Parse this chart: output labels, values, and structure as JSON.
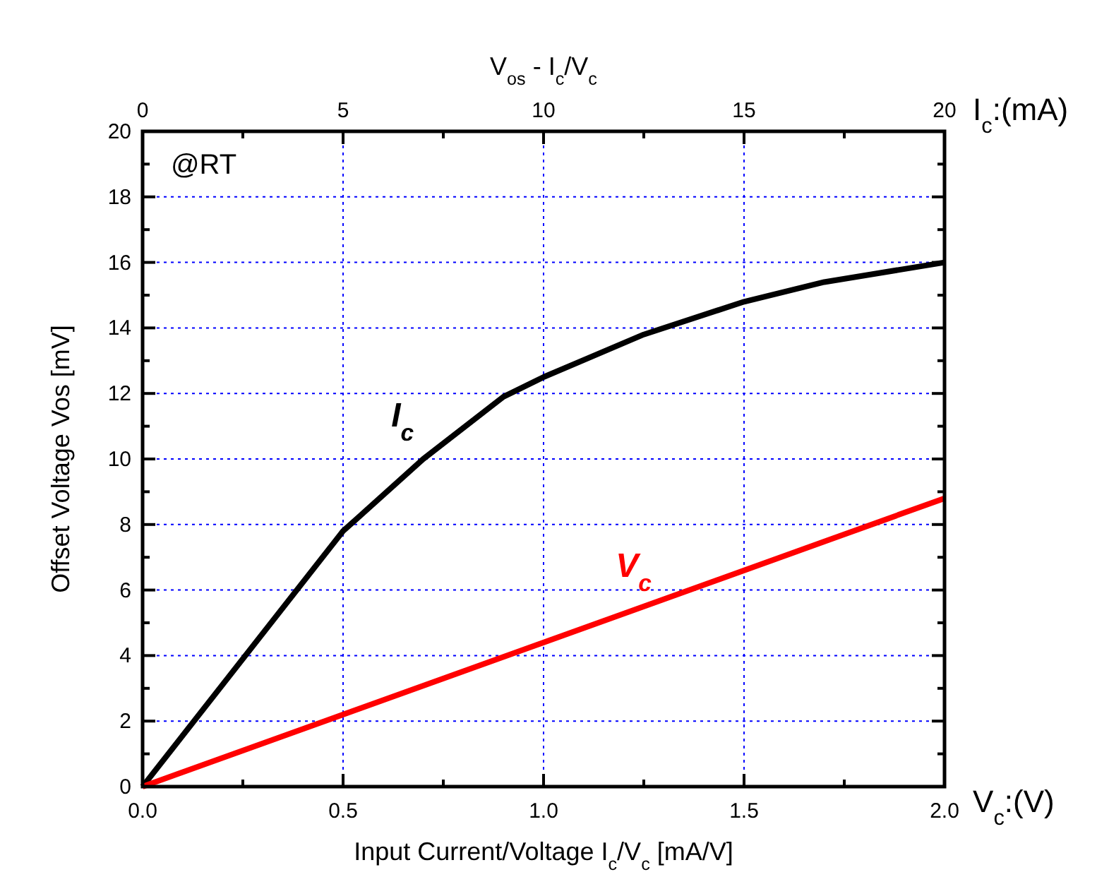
{
  "chart_data": {
    "type": "line",
    "title": "V$_{os}$ - I$_{c}$/V$_{c}$",
    "xlabel": "Input Current/Voltage I$_{c}$/V$_{c}$ [mA/V]",
    "ylabel": "Offset Voltage Vos [mV]",
    "x2label": "I$_{c}$:(mA)",
    "annotations": [
      "@RT",
      "V$_{c}$:(V)"
    ],
    "xlim": [
      0,
      2
    ],
    "xticks": [
      {
        "value": 0,
        "label": "0.0"
      },
      {
        "value": 0.5,
        "label": "0.5"
      },
      {
        "value": 1,
        "label": "1.0"
      },
      {
        "value": 1.5,
        "label": "1.5"
      },
      {
        "value": 2,
        "label": "2.0"
      }
    ],
    "x2lim": [
      0,
      20
    ],
    "x2ticks": [
      0,
      5,
      10,
      15,
      20
    ],
    "ylim": [
      0,
      20
    ],
    "yticks": [
      0,
      2,
      4,
      6,
      8,
      10,
      12,
      14,
      16,
      18,
      20
    ],
    "grid": true,
    "marker": "none",
    "line_style": "solid",
    "series": [
      {
        "name": "I$_{c}$",
        "color": "#000000",
        "axis": "x2",
        "x": [
          0,
          5,
          7,
          9,
          10,
          12.5,
          15,
          17,
          20
        ],
        "values": [
          0,
          7.8,
          10,
          11.9,
          12.5,
          13.8,
          14.8,
          15.4,
          16
        ]
      },
      {
        "name": "V$_{c}$",
        "color": "#ff0000",
        "x": [
          0,
          2
        ],
        "values": [
          0,
          8.8
        ]
      }
    ]
  }
}
